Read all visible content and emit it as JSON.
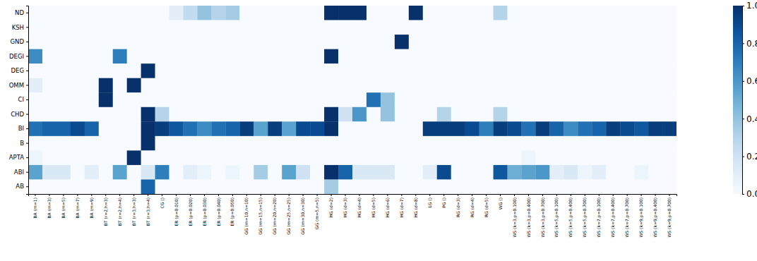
{
  "chart_data": {
    "type": "heatmap",
    "x": [
      "BA (m=1)",
      "BA (m=3)",
      "BA (m=5)",
      "BA (m=7)",
      "BA (m=9)",
      "BT (r=2,h=3)",
      "BT (r=2,h=4)",
      "BT (r=3,h=3)",
      "BT (r=3,h=4)",
      "CG ()",
      "ER (p=0.010)",
      "ER (p=0.020)",
      "ER (p=0.030)",
      "ER (p=0.040)",
      "ER (p=0.050)",
      "GG (m=10,n=10)",
      "GG (m=15,n=15)",
      "GG (m=20,n=20)",
      "GG (m=25,n=25)",
      "GG (m=30,n=30)",
      "GG (m=5,n=5)",
      "HG (d=2)",
      "HG (d=3)",
      "HG (d=4)",
      "HG (d=5)",
      "HG (d=6)",
      "HG (d=7)",
      "HG (d=8)",
      "LG ()",
      "PG ()",
      "RG (d=3)",
      "RG (d=4)",
      "RG (d=5)",
      "WG ()",
      "WS (k=3,p=0.100)",
      "WS (k=3,p=0.400)",
      "WS (k=3,p=0.700)",
      "WS (k=5,p=0.100)",
      "WS (k=5,p=0.400)",
      "WS (k=5,p=0.700)",
      "WS (k=7,p=0.100)",
      "WS (k=7,p=0.400)",
      "WS (k=7,p=0.700)",
      "WS (k=9,p=0.100)",
      "WS (k=9,p=0.400)",
      "WS (k=9,p=0.700)"
    ],
    "y": [
      "ND",
      "KSH",
      "GND",
      "DEGI",
      "DEG",
      "OMM",
      "CI",
      "CHD",
      "BI",
      "B",
      "APTA",
      "ABI",
      "AB"
    ],
    "cells": [
      [
        0,
        0,
        0,
        0,
        0,
        0,
        0,
        0,
        0,
        0,
        0.1,
        0.25,
        0.4,
        0.3,
        0.35,
        0,
        0,
        0,
        0,
        0,
        0,
        1,
        1,
        1,
        0,
        0,
        0,
        1,
        0,
        0,
        0,
        0,
        0,
        0.3,
        0,
        0,
        0,
        0,
        0,
        0,
        0,
        0,
        0,
        0,
        0,
        0
      ],
      [
        0,
        0,
        0,
        0,
        0,
        0,
        0,
        0,
        0,
        0,
        0,
        0,
        0,
        0,
        0,
        0,
        0,
        0,
        0,
        0,
        0,
        0,
        0,
        0,
        0,
        0,
        0,
        0,
        0,
        0,
        0,
        0,
        0,
        0,
        0,
        0,
        0,
        0,
        0,
        0,
        0,
        0,
        0,
        0,
        0,
        0
      ],
      [
        0,
        0,
        0,
        0,
        0,
        0,
        0,
        0,
        0,
        0,
        0,
        0,
        0,
        0,
        0,
        0,
        0,
        0,
        0,
        0,
        0,
        0,
        0,
        0,
        0,
        0,
        1,
        0,
        0,
        0,
        0,
        0,
        0,
        0,
        0,
        0,
        0,
        0,
        0,
        0,
        0,
        0,
        0,
        0,
        0,
        0
      ],
      [
        0.65,
        0,
        0,
        0,
        0,
        0,
        0.7,
        0,
        0,
        0,
        0,
        0,
        0,
        0,
        0,
        0,
        0,
        0,
        0,
        0,
        0,
        1,
        0,
        0,
        0,
        0,
        0,
        0,
        0,
        0,
        0,
        0,
        0,
        0,
        0,
        0,
        0,
        0,
        0,
        0,
        0,
        0,
        0,
        0,
        0,
        0
      ],
      [
        0,
        0,
        0,
        0,
        0,
        0,
        0,
        0,
        1,
        0,
        0,
        0,
        0,
        0,
        0,
        0,
        0,
        0,
        0,
        0,
        0,
        0,
        0,
        0,
        0,
        0,
        0,
        0,
        0,
        0,
        0,
        0,
        0,
        0,
        0,
        0,
        0,
        0,
        0,
        0,
        0,
        0,
        0,
        0,
        0,
        0
      ],
      [
        0.1,
        0,
        0,
        0,
        0,
        1,
        0,
        1,
        0,
        0,
        0,
        0,
        0,
        0,
        0,
        0,
        0,
        0,
        0,
        0,
        0,
        0,
        0,
        0,
        0,
        0,
        0,
        0,
        0,
        0,
        0,
        0,
        0,
        0,
        0,
        0,
        0,
        0,
        0,
        0,
        0,
        0,
        0,
        0,
        0,
        0
      ],
      [
        0,
        0,
        0,
        0,
        0,
        1,
        0,
        0,
        0,
        0,
        0,
        0,
        0,
        0,
        0,
        0,
        0,
        0,
        0,
        0,
        0,
        0,
        0,
        0,
        0.75,
        0.4,
        0,
        0,
        0,
        0,
        0,
        0,
        0,
        0,
        0,
        0,
        0,
        0,
        0,
        0,
        0,
        0,
        0,
        0,
        0,
        0
      ],
      [
        0,
        0,
        0,
        0,
        0,
        0,
        0,
        0,
        1,
        0.3,
        0,
        0,
        0,
        0,
        0,
        0,
        0,
        0,
        0,
        0,
        0,
        1,
        0.2,
        0.6,
        0,
        0.4,
        0,
        0,
        0,
        0.3,
        0,
        0,
        0,
        0.3,
        0,
        0,
        0,
        0,
        0,
        0,
        0,
        0,
        0,
        0,
        0,
        0
      ],
      [
        0.75,
        0.8,
        0.8,
        0.9,
        0.8,
        0,
        0,
        0,
        1,
        0.95,
        0.85,
        0.75,
        0.65,
        0.75,
        0.8,
        0.95,
        0.55,
        0.95,
        0.55,
        0.9,
        0.9,
        1,
        0,
        0,
        0,
        0,
        0,
        0,
        0.95,
        0.95,
        0.95,
        0.9,
        0.7,
        0.95,
        0.9,
        0.75,
        0.95,
        0.8,
        0.65,
        0.75,
        0.8,
        0.95,
        0.9,
        0.85,
        0.95,
        0.95
      ],
      [
        0,
        0,
        0,
        0,
        0,
        0,
        0,
        0,
        1,
        0,
        0,
        0,
        0,
        0,
        0,
        0,
        0,
        0,
        0,
        0,
        0,
        0,
        0,
        0,
        0,
        0,
        0,
        0,
        0,
        0,
        0,
        0,
        0,
        0,
        0,
        0,
        0,
        0,
        0,
        0,
        0,
        0,
        0,
        0,
        0,
        0
      ],
      [
        0.05,
        0,
        0,
        0,
        0,
        0,
        0,
        1,
        0,
        0,
        0,
        0,
        0,
        0,
        0,
        0,
        0,
        0,
        0,
        0,
        0,
        0,
        0,
        0,
        0,
        0,
        0,
        0,
        0,
        0,
        0,
        0,
        0,
        0,
        0,
        0.05,
        0,
        0,
        0,
        0,
        0,
        0,
        0,
        0,
        0,
        0
      ],
      [
        0.55,
        0.15,
        0.15,
        0,
        0.1,
        0,
        0.55,
        0,
        0.15,
        0.7,
        0,
        0.1,
        0.05,
        0,
        0.05,
        0,
        0.35,
        0,
        0.55,
        0.2,
        0,
        1,
        0.8,
        0.15,
        0.15,
        0.15,
        0,
        0,
        0.1,
        0.9,
        0,
        0,
        0,
        0.85,
        0.5,
        0.55,
        0.6,
        0.1,
        0.15,
        0.05,
        0.1,
        0,
        0,
        0.05,
        0,
        0
      ],
      [
        0,
        0,
        0,
        0,
        0,
        0,
        0,
        0,
        0.8,
        0,
        0,
        0,
        0,
        0,
        0,
        0,
        0,
        0,
        0,
        0,
        0,
        0.35,
        0,
        0,
        0,
        0,
        0,
        0,
        0,
        0,
        0,
        0,
        0,
        0,
        0,
        0,
        0,
        0,
        0,
        0,
        0,
        0,
        0,
        0,
        0,
        0
      ]
    ],
    "colorbar": {
      "range": [
        0,
        1
      ],
      "ticks": [
        {
          "value": 0,
          "label": "0.0"
        },
        {
          "value": 0.2,
          "label": "0.2"
        },
        {
          "value": 0.4,
          "label": "0.4"
        },
        {
          "value": 0.6,
          "label": "0.6"
        },
        {
          "value": 0.8,
          "label": "0.8"
        },
        {
          "value": 1,
          "label": "1.0"
        }
      ]
    }
  }
}
